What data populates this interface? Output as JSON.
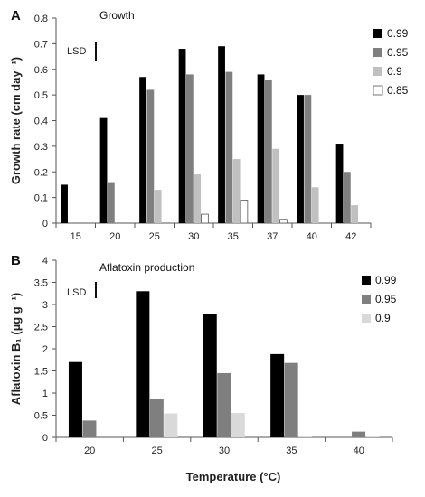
{
  "chart_data": [
    {
      "type": "bar",
      "panel_label": "A",
      "title": "Growth",
      "ylabel": "Growth rate (cm day⁻¹)",
      "xlabel": "",
      "ylim": [
        0,
        0.8
      ],
      "yticks": [
        "0",
        "0.1",
        "0.2",
        "0.3",
        "0.4",
        "0.5",
        "0.6",
        "0.7",
        "0.8"
      ],
      "lsd_label": "LSD",
      "legend_position": "right",
      "categories": [
        "15",
        "20",
        "25",
        "30",
        "35",
        "37",
        "40",
        "42"
      ],
      "series": [
        {
          "name": "0.99",
          "color": "#000000",
          "values": [
            0.15,
            0.41,
            0.57,
            0.68,
            0.69,
            0.58,
            0.5,
            0.31
          ]
        },
        {
          "name": "0.95",
          "color": "#7f7f7f",
          "values": [
            0,
            0.16,
            0.52,
            0.58,
            0.59,
            0.56,
            0.5,
            0.2
          ]
        },
        {
          "name": "0.9",
          "color": "#c0c0c0",
          "values": [
            0,
            0,
            0.13,
            0.19,
            0.25,
            0.29,
            0.14,
            0.07
          ]
        },
        {
          "name": "0.85",
          "color": "#ffffff",
          "values": [
            0,
            0,
            0,
            0.035,
            0.09,
            0.015,
            0,
            0
          ]
        }
      ]
    },
    {
      "type": "bar",
      "panel_label": "B",
      "title": "Aflatoxin production",
      "ylabel": "Aflatoxin B₁ (µg g⁻¹)",
      "xlabel": "Temperature (°C)",
      "ylim": [
        0,
        4
      ],
      "yticks": [
        "0",
        "0.5",
        "1",
        "1.5",
        "2",
        "2.5",
        "3",
        "3.5",
        "4"
      ],
      "lsd_label": "LSD",
      "legend_position": "right",
      "categories": [
        "20",
        "25",
        "30",
        "35",
        "40"
      ],
      "series": [
        {
          "name": "0.99",
          "color": "#000000",
          "values": [
            1.7,
            3.3,
            2.78,
            1.88,
            0
          ]
        },
        {
          "name": "0.95",
          "color": "#7f7f7f",
          "values": [
            0.38,
            0.86,
            1.45,
            1.68,
            0.13
          ]
        },
        {
          "name": "0.9",
          "color": "#d9d9d9",
          "values": [
            0,
            0.54,
            0.55,
            0.02,
            0.02
          ]
        }
      ]
    }
  ]
}
